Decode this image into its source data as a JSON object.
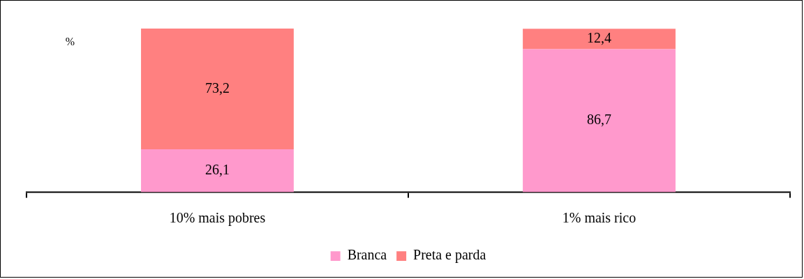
{
  "chart_data": {
    "type": "bar",
    "stacked": true,
    "ylabel": "%",
    "categories": [
      "10% mais pobres",
      "1% mais rico"
    ],
    "series": [
      {
        "name": "Branca",
        "color": "#ff99cc",
        "values": [
          26.1,
          86.7
        ],
        "value_labels": [
          "26,1",
          "86,7"
        ]
      },
      {
        "name": "Preta e parda",
        "color": "#ff8080",
        "values": [
          73.2,
          12.4
        ],
        "value_labels": [
          "73,2",
          "12,4"
        ]
      }
    ],
    "legend": "bottom",
    "grid": false
  }
}
